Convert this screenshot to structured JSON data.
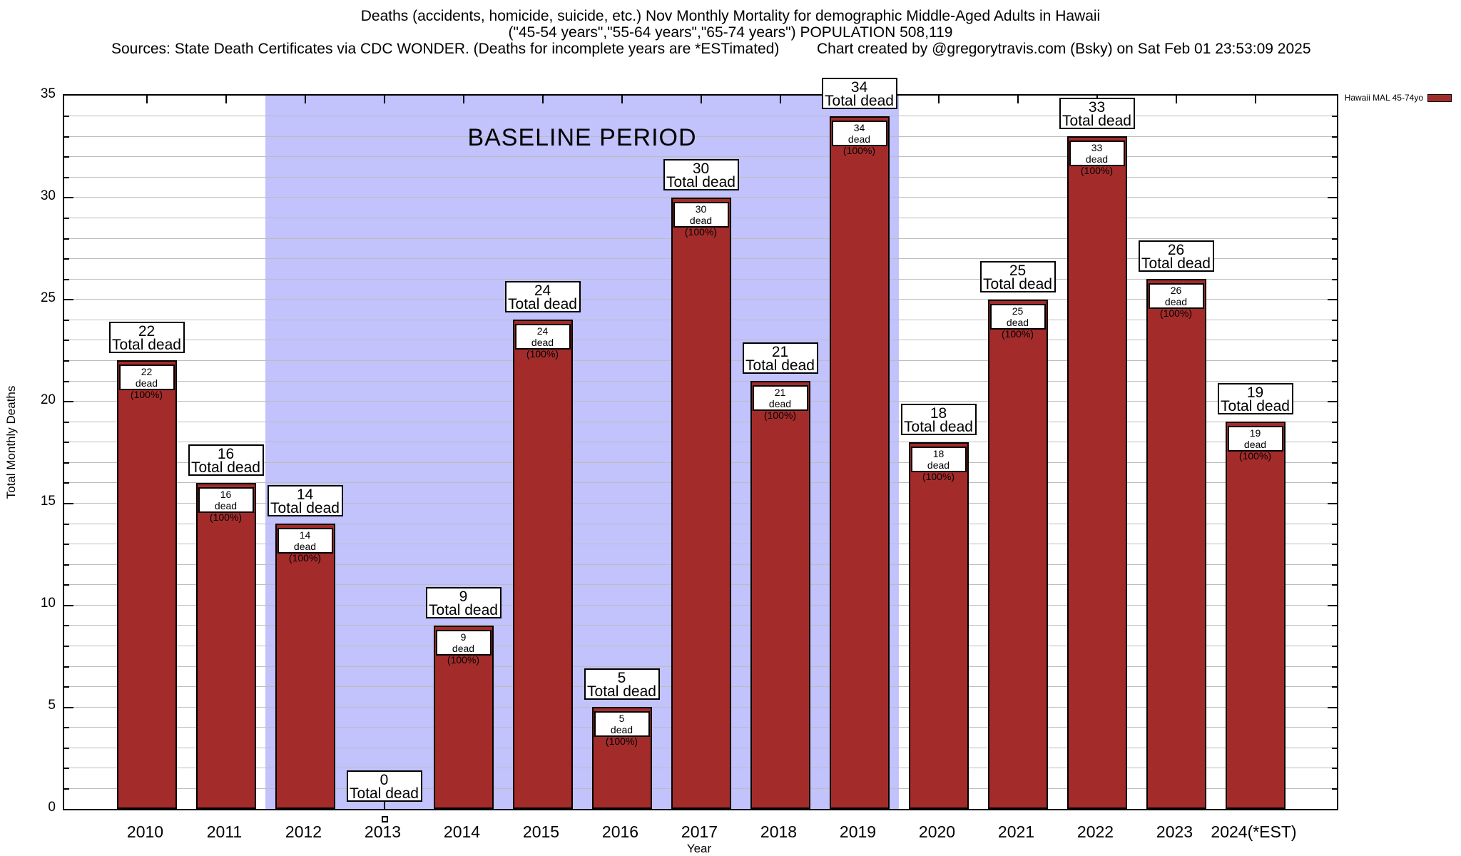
{
  "header": {
    "title_line1": "Deaths (accidents, homicide, suicide, etc.) Nov Monthly Mortality for demographic Middle-Aged Adults in Hawaii",
    "title_line2": "(\"45-54 years\",\"55-64 years\",\"65-74 years\") POPULATION 508,119",
    "sources": "Sources: State Death Certificates via CDC WONDER. (Deaths for incomplete years are *ESTimated)",
    "credit": "Chart created by @gregorytravis.com (Bsky) on Sat Feb 01 23:53:09 2025"
  },
  "legend": {
    "label": "Hawaii MAL 45-74yo",
    "swatch_color": "#a32c2b"
  },
  "labels": {
    "total_dead": "Total dead",
    "dead_pct": "dead (100%)"
  },
  "chart_data": {
    "type": "bar",
    "title": "Deaths (accidents, homicide, suicide, etc.) Nov Monthly Mortality for demographic Middle-Aged Adults in Hawaii",
    "subtitle": "(\"45-54 years\",\"55-64 years\",\"65-74 years\") POPULATION 508,119",
    "categories": [
      "2010",
      "2011",
      "2012",
      "2013",
      "2014",
      "2015",
      "2016",
      "2017",
      "2018",
      "2019",
      "2020",
      "2021",
      "2022",
      "2023",
      "2024(*EST)"
    ],
    "values": [
      22,
      16,
      14,
      0,
      9,
      24,
      5,
      30,
      21,
      34,
      18,
      25,
      33,
      26,
      19
    ],
    "series_name": "Hawaii MAL 45-74yo",
    "bar_color": "#a32c2b",
    "xlabel": "Year",
    "ylabel": "Total Monthly Deaths",
    "ylim": [
      0,
      35
    ],
    "yticks_major": [
      0,
      5,
      10,
      15,
      20,
      25,
      30,
      35
    ],
    "minor_gridline_step": 1,
    "grid": true,
    "legend_position": "top-right-outside",
    "bar_label_above_line2": "Total dead",
    "bar_label_inside_line2": "dead (100%)",
    "annotation_band": {
      "label": "BASELINE PERIOD",
      "from_category": "2012",
      "to_category": "2019",
      "color": "#c2c2fc"
    }
  }
}
